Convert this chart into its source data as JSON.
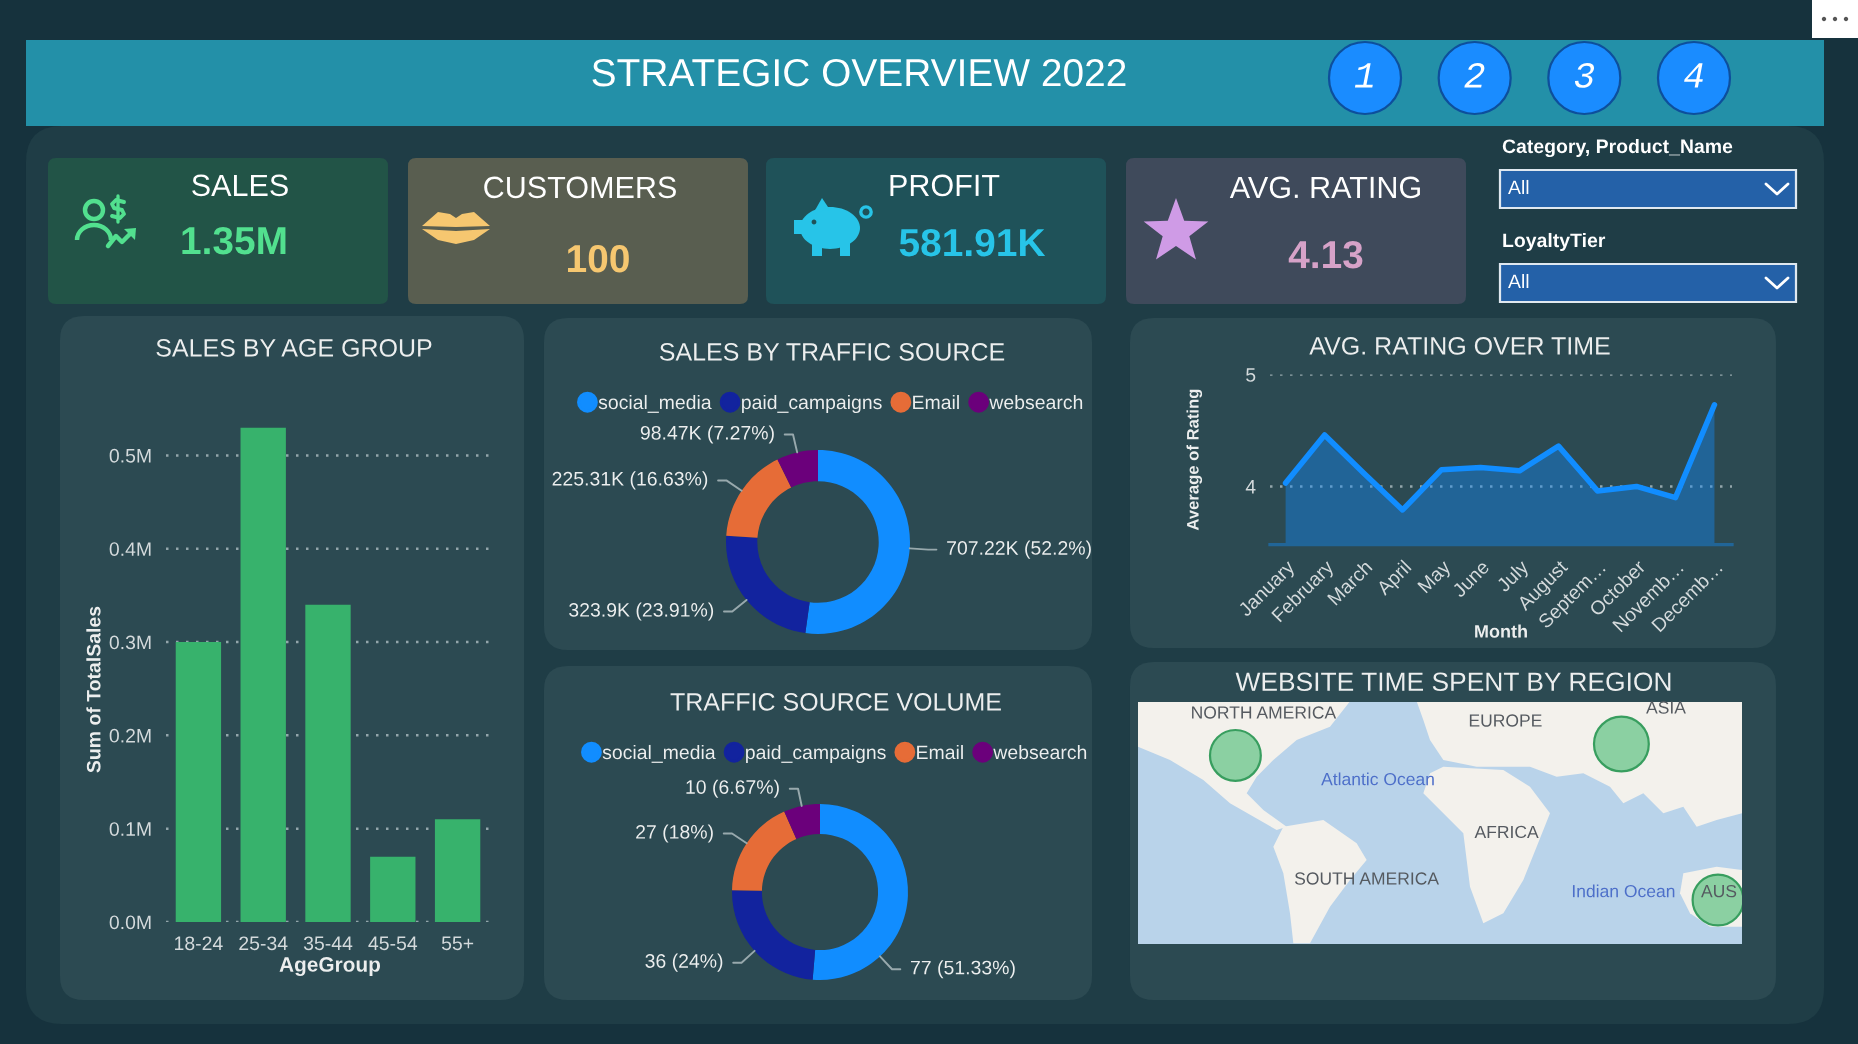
{
  "chart_data": [
    {
      "type": "other",
      "title": "STRATEGIC OVERVIEW 2022",
      "annotations": [
        "1 2 3 4"
      ]
    },
    {
      "type": "other",
      "title": "SALES",
      "annotations": [
        "1.35M"
      ]
    },
    {
      "type": "other",
      "title": "CUSTOMERS",
      "annotations": [
        "100"
      ]
    },
    {
      "type": "other",
      "title": "PROFIT",
      "annotations": [
        "581.91K"
      ]
    },
    {
      "type": "other",
      "title": "AVG. RATING",
      "annotations": [
        "4.13"
      ]
    },
    {
      "type": "other",
      "annotations": [
        "Category, Product_Name",
        "All",
        "LoyaltyTier",
        "All"
      ]
    },
    {
      "type": "bar",
      "title": "SALES BY AGE GROUP",
      "xlabel": "AgeGroup",
      "ylabel": "Sum of TotalSales",
      "categories": [
        "18-24",
        "25-34",
        "35-44",
        "45-54",
        "55+"
      ],
      "values": [
        0.3,
        0.53,
        0.34,
        0.07,
        0.11
      ],
      "color": "#37b26c",
      "ylim": [
        0,
        0.53
      ],
      "yticks": [
        {
          "value": 0,
          "label": "0.0M"
        },
        {
          "value": 0.1,
          "label": "0.1M"
        },
        {
          "value": 0.2,
          "label": "0.2M"
        },
        {
          "value": 0.3,
          "label": "0.3M"
        },
        {
          "value": 0.4,
          "label": "0.4M"
        },
        {
          "value": 0.5,
          "label": "0.5M"
        }
      ],
      "grid": "y"
    },
    {
      "type": "donut",
      "title": "SALES BY TRAFFIC SOURCE",
      "categories": [
        "social_media",
        "paid_campaigns",
        "Email",
        "websearch"
      ],
      "values": [
        707220,
        323900,
        225310,
        98470
      ],
      "colors": [
        "#118dff",
        "#12239e",
        "#e66c37",
        "#6b007b"
      ],
      "value_labels": [
        "707.22K (52.2%)",
        "323.9K (23.91%)",
        "225.31K (16.63%)",
        "98.47K (7.27%)"
      ],
      "legend": "top"
    },
    {
      "type": "area",
      "title": "AVG. RATING OVER TIME",
      "xlabel": "Month",
      "ylabel": "Average of Rating",
      "categories": [
        "January",
        "February",
        "March",
        "April",
        "May",
        "June",
        "July",
        "August",
        "Septem…",
        "October",
        "Novemb…",
        "Decemb…"
      ],
      "values": [
        4.03,
        4.46,
        4.12,
        3.79,
        4.15,
        4.17,
        4.14,
        4.36,
        3.96,
        4.0,
        3.9,
        4.73
      ],
      "color": "#118dff",
      "ylim": [
        3.48,
        5
      ],
      "yticks": [
        4,
        5
      ],
      "grid": "y"
    },
    {
      "type": "donut",
      "title": "TRAFFIC SOURCE VOLUME",
      "categories": [
        "social_media",
        "paid_campaigns",
        "Email",
        "websearch"
      ],
      "values": [
        77,
        36,
        27,
        10
      ],
      "colors": [
        "#118dff",
        "#12239e",
        "#e66c37",
        "#6b007b"
      ],
      "value_labels": [
        "77 (51.33%)",
        "36 (24%)",
        "27 (18%)",
        "10 (6.67%)"
      ],
      "legend": "top"
    },
    {
      "type": "other",
      "title": "WEBSITE TIME SPENT BY REGION",
      "annotations": [
        "NORTH AMERICA",
        "EUROPE",
        "ASIA",
        "Atlantic Ocean",
        "AFRICA",
        "SOUTH AMERICA",
        "Indian Ocean",
        "AUS"
      ]
    }
  ]
}
